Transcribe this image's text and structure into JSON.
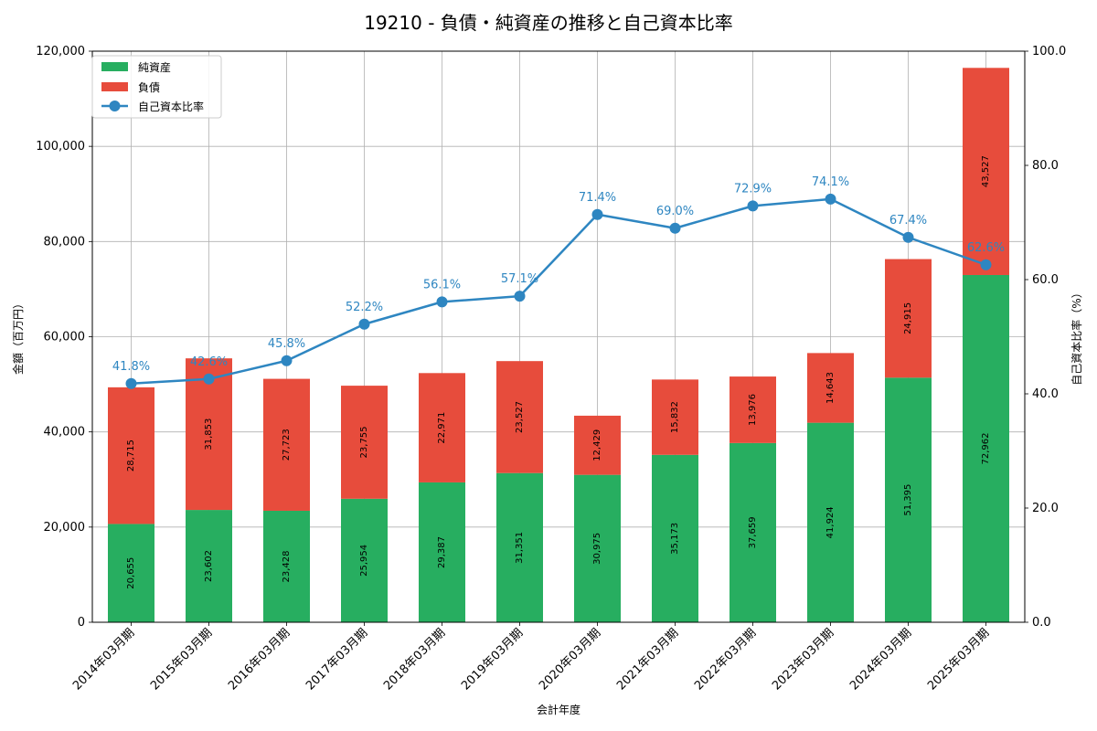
{
  "chart_data": {
    "type": "bar",
    "title": "19210 - 負債・純資産の推移と自己資本比率",
    "xlabel": "会計年度",
    "ylabel": "金額（百万円）",
    "y2label": "自己資本比率（%）",
    "ylim": [
      0,
      120000
    ],
    "y2lim": [
      0,
      100
    ],
    "yticks": [
      "0",
      "20,000",
      "40,000",
      "60,000",
      "80,000",
      "100,000",
      "120,000"
    ],
    "y2ticks": [
      "0.0",
      "20.0",
      "40.0",
      "60.0",
      "80.0",
      "100.0"
    ],
    "grid": true,
    "legend_position": "top-left",
    "categories": [
      "2014年03月期",
      "2015年03月期",
      "2016年03月期",
      "2017年03月期",
      "2018年03月期",
      "2019年03月期",
      "2020年03月期",
      "2021年03月期",
      "2022年03月期",
      "2023年03月期",
      "2024年03月期",
      "2025年03月期"
    ],
    "series": [
      {
        "name": "純資産",
        "kind": "stacked-bar",
        "color": "#27ae60",
        "values": [
          20655,
          23602,
          23428,
          25954,
          29387,
          31351,
          30975,
          35173,
          37659,
          41924,
          51395,
          72962
        ],
        "labels": [
          "20,655",
          "23,602",
          "23,428",
          "25,954",
          "29,387",
          "31,351",
          "30,975",
          "35,173",
          "37,659",
          "41,924",
          "51,395",
          "72,962"
        ]
      },
      {
        "name": "負債",
        "kind": "stacked-bar",
        "color": "#e74c3c",
        "values": [
          28715,
          31853,
          27723,
          23755,
          22971,
          23527,
          12429,
          15832,
          13976,
          14643,
          24915,
          43527
        ],
        "labels": [
          "28,715",
          "31,853",
          "27,723",
          "23,755",
          "22,971",
          "23,527",
          "12,429",
          "15,832",
          "13,976",
          "14,643",
          "24,915",
          "43,527"
        ]
      },
      {
        "name": "自己資本比率",
        "kind": "line",
        "axis": "right",
        "color": "#2e86c1",
        "values": [
          41.8,
          42.6,
          45.8,
          52.2,
          56.1,
          57.1,
          71.4,
          69.0,
          72.9,
          74.1,
          67.4,
          62.6
        ],
        "labels": [
          "41.8%",
          "42.6%",
          "45.8%",
          "52.2%",
          "56.1%",
          "57.1%",
          "71.4%",
          "69.0%",
          "72.9%",
          "74.1%",
          "67.4%",
          "62.6%"
        ]
      }
    ]
  }
}
